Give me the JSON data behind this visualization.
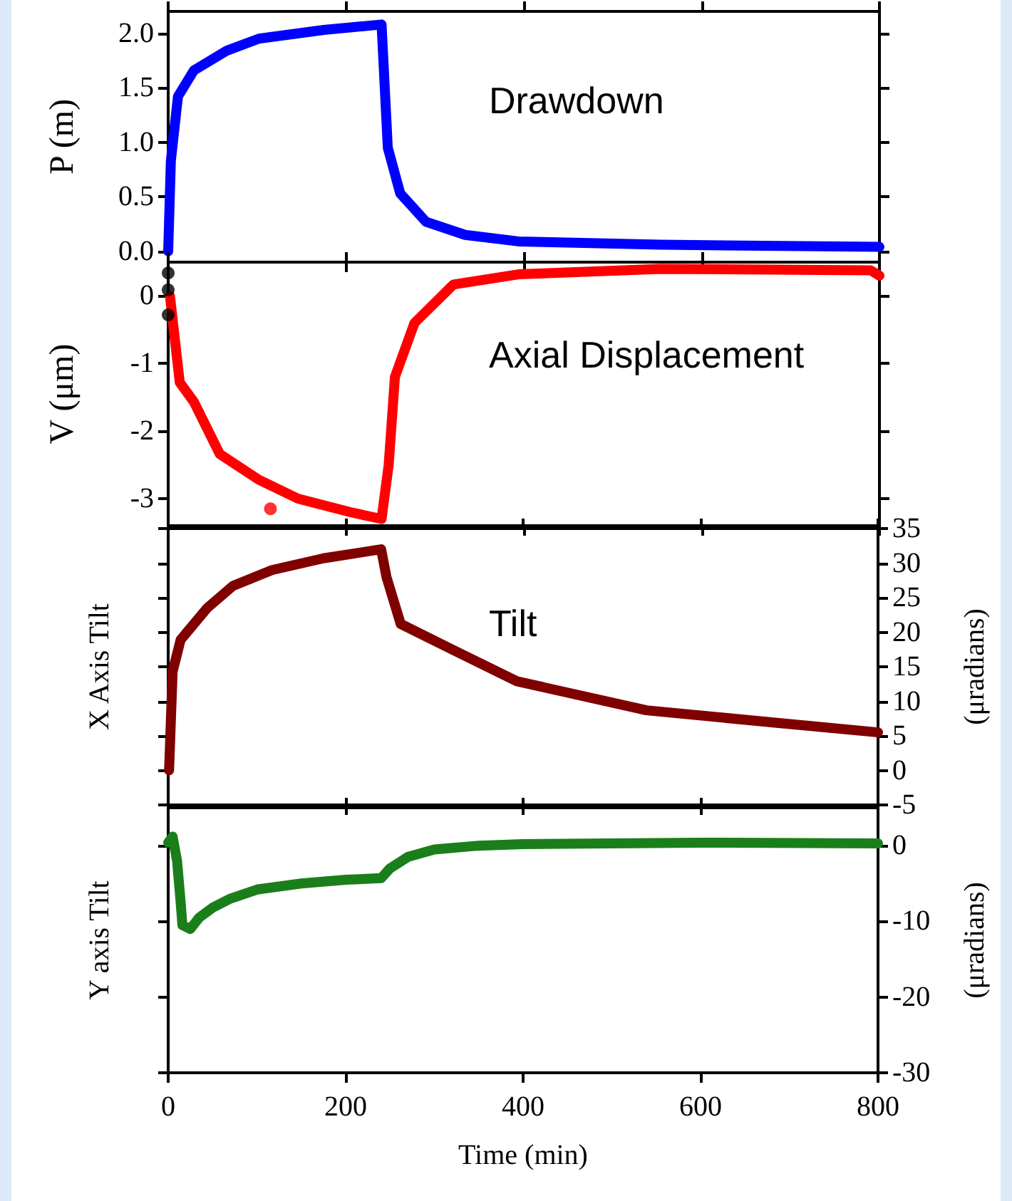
{
  "chart_data": [
    {
      "type": "line",
      "ylabel": "P (m)",
      "annotations": [
        "Drawdown"
      ],
      "xlim": [
        0,
        800
      ],
      "xticks": [
        0,
        200,
        400,
        600,
        800
      ],
      "ylim": [
        -0.1,
        2.2
      ],
      "yticks": [
        {
          "value": 0,
          "label": "0.0"
        },
        {
          "value": 0.5,
          "label": "0.5"
        },
        {
          "value": 1,
          "label": "1.0"
        },
        {
          "value": 1.5,
          "label": "1.5"
        },
        {
          "value": 2,
          "label": "2.0"
        }
      ],
      "tick_labels": "y",
      "series": [
        {
          "color": "#0000ff",
          "x": [
            0,
            3,
            11,
            29,
            66,
            102,
            175,
            240,
            247,
            261,
            290,
            334,
            394,
            554,
            800
          ],
          "values": [
            0,
            0.83,
            1.42,
            1.66,
            1.84,
            1.95,
            2.03,
            2.08,
            0.95,
            0.53,
            0.27,
            0.15,
            0.09,
            0.06,
            0.04
          ]
        }
      ]
    },
    {
      "type": "line",
      "ylabel": "V (μm)",
      "annotations": [
        "Axial Displacement"
      ],
      "xlim": [
        0,
        800
      ],
      "xticks": [
        0,
        200,
        400,
        600,
        800
      ],
      "ylim": [
        -3.4,
        0.5
      ],
      "yticks": [
        0,
        -1,
        -2,
        -3
      ],
      "tick_labels": "y",
      "series": [
        {
          "color": "#ff0000",
          "x": [
            2,
            8,
            13,
            29,
            58,
            102,
            146,
            205,
            240,
            248,
            255,
            277,
            321,
            394,
            554,
            790,
            800
          ],
          "values": [
            0,
            -0.7,
            -1.28,
            -1.57,
            -2.34,
            -2.72,
            -3.0,
            -3.2,
            -3.3,
            -2.5,
            -1.2,
            -0.4,
            0.17,
            0.32,
            0.4,
            0.38,
            0.3
          ]
        },
        {
          "type": "scatter",
          "marker": "circle",
          "color": "#ff0000",
          "x": [
            115
          ],
          "values": [
            -3.15
          ]
        },
        {
          "type": "scatter",
          "marker": "circle",
          "color": "#000000",
          "x": [
            0,
            0,
            0
          ],
          "values": [
            0.34,
            0.09,
            -0.28
          ]
        }
      ]
    },
    {
      "type": "line",
      "ylabel": "X Axis Tilt",
      "y2label": "(μradians)",
      "annotations": [
        "Tilt"
      ],
      "xlim": [
        0,
        800
      ],
      "xticks": [
        0,
        200,
        400,
        600,
        800
      ],
      "y2lim": [
        -5,
        35
      ],
      "y2ticks": [
        -5,
        0,
        5,
        10,
        15,
        20,
        25,
        30,
        35
      ],
      "tick_labels": "y",
      "series": [
        {
          "axis": "y2",
          "color": "#800000",
          "x": [
            1,
            5,
            14,
            44,
            73,
            117,
            175,
            240,
            246,
            262,
            320,
            393,
            539,
            684,
            800
          ],
          "values": [
            0,
            14.3,
            18.9,
            23.5,
            26.7,
            29,
            30.7,
            32,
            28,
            21.2,
            17.5,
            12.9,
            8.7,
            6.9,
            5.5
          ]
        }
      ]
    },
    {
      "type": "line",
      "ylabel": "Y axis Tilt",
      "y2label": "(μradians)",
      "xlabel": "Time (min)",
      "xlim": [
        0,
        800
      ],
      "xticks": [
        0,
        200,
        400,
        600,
        800
      ],
      "y2lim": [
        -30,
        5
      ],
      "y2ticks": [
        0,
        -10,
        -20,
        -30
      ],
      "series": [
        {
          "axis": "y2",
          "color": "#1a7f1a",
          "x": [
            0,
            5,
            10,
            14,
            16,
            25,
            35,
            50,
            70,
            100,
            150,
            200,
            240,
            250,
            270,
            300,
            350,
            400,
            600,
            800
          ],
          "values": [
            0.4,
            1.2,
            -2,
            -7.4,
            -10.5,
            -11,
            -9.5,
            -8.2,
            -7,
            -5.8,
            -5,
            -4.5,
            -4.3,
            -3,
            -1.5,
            -0.5,
            0,
            0.2,
            0.4,
            0.3
          ]
        }
      ]
    }
  ]
}
